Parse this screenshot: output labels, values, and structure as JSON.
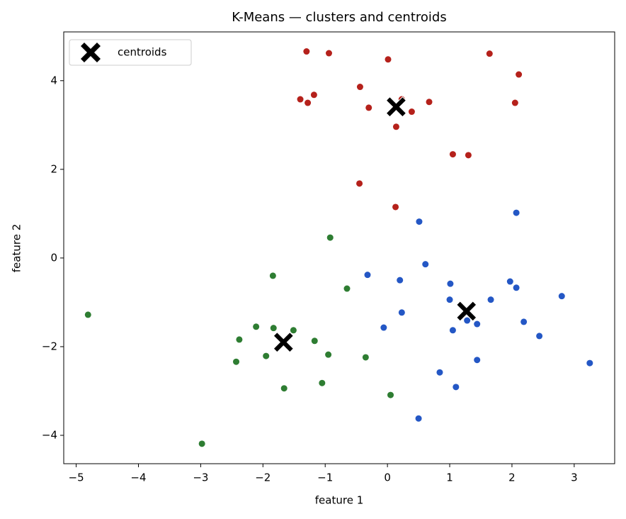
{
  "chart_data": {
    "type": "scatter",
    "title": "K-Means — clusters and centroids",
    "x_label": "feature 1",
    "y_label": "feature 2",
    "xlim": [
      -5.2,
      3.65
    ],
    "ylim": [
      -4.64,
      5.1
    ],
    "xticks": [
      {
        "value": -5,
        "label": "−5"
      },
      {
        "value": -4,
        "label": "−4"
      },
      {
        "value": -3,
        "label": "−3"
      },
      {
        "value": -2,
        "label": "−2"
      },
      {
        "value": -1,
        "label": "−1"
      },
      0,
      1,
      2,
      3
    ],
    "yticks": [
      {
        "value": -4,
        "label": "−4"
      },
      {
        "value": -2,
        "label": "−2"
      },
      0,
      2,
      4
    ],
    "grid": false,
    "legend": "upper left",
    "series": [
      {
        "color": "#b5211b",
        "x": [
          -1.3,
          -0.94,
          0.01,
          1.64,
          2.11,
          -1.4,
          -1.18,
          -1.28,
          -0.44,
          -0.3,
          0.23,
          0.39,
          0.67,
          0.14,
          2.05,
          1.05,
          1.3,
          -0.45,
          0.13
        ],
        "y": [
          4.66,
          4.62,
          4.48,
          4.61,
          4.14,
          3.58,
          3.68,
          3.5,
          3.86,
          3.39,
          3.58,
          3.3,
          3.52,
          2.96,
          3.5,
          2.34,
          2.32,
          1.68,
          1.15
        ]
      },
      {
        "color": "#2457c5",
        "x": [
          2.07,
          0.51,
          0.61,
          -0.32,
          0.2,
          1.01,
          1.97,
          2.07,
          1.0,
          1.66,
          2.8,
          0.23,
          -0.06,
          1.05,
          1.44,
          2.19,
          2.44,
          1.28,
          1.44,
          0.84,
          1.1,
          3.25,
          0.5
        ],
        "y": [
          1.02,
          0.82,
          -0.14,
          -0.38,
          -0.5,
          -0.58,
          -0.53,
          -0.67,
          -0.94,
          -0.94,
          -0.86,
          -1.23,
          -1.57,
          -1.63,
          -1.49,
          -1.44,
          -1.76,
          -1.41,
          -2.3,
          -2.58,
          -2.91,
          -2.37,
          -3.62
        ]
      },
      {
        "color": "#2e7d32",
        "x": [
          -0.92,
          -1.84,
          -0.65,
          -4.81,
          -2.11,
          -1.83,
          -1.51,
          -2.38,
          -1.17,
          -2.43,
          -1.95,
          -0.95,
          -0.35,
          -1.05,
          -1.66,
          0.05,
          -2.98
        ],
        "y": [
          0.46,
          -0.4,
          -0.69,
          -1.28,
          -1.55,
          -1.58,
          -1.63,
          -1.84,
          -1.87,
          -2.34,
          -2.21,
          -2.18,
          -2.24,
          -2.82,
          -2.94,
          -3.09,
          -4.19
        ]
      },
      {
        "name": "centroids",
        "color": "#000000",
        "marker": "X",
        "x": [
          -1.67,
          0.14,
          1.27
        ],
        "y": [
          -1.9,
          3.41,
          -1.2
        ]
      }
    ]
  }
}
